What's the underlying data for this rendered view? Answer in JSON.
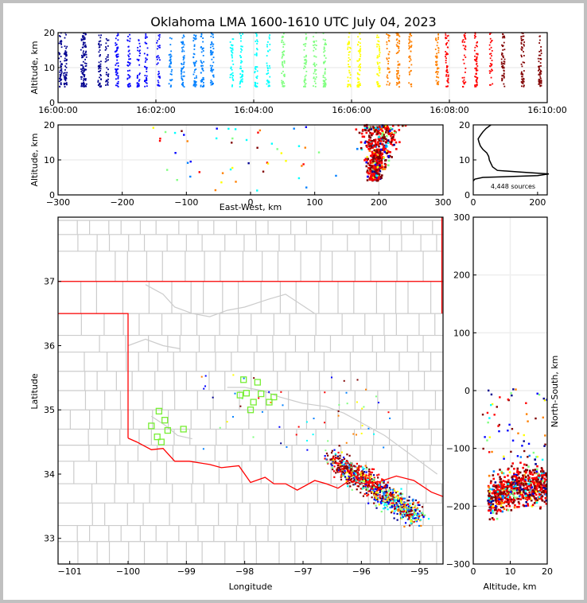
{
  "title": "Oklahoma LMA 1600-1610 UTC July 04, 2023",
  "colors": {
    "state_border": "#ff0000",
    "county_border": "#cccccc",
    "grid": "#eeeeee",
    "station_marker": "#77ee33",
    "colormap": [
      "#00008f",
      "#0000ff",
      "#0080ff",
      "#00ffff",
      "#80ff80",
      "#ffff00",
      "#ff8000",
      "#ff0000",
      "#800000"
    ]
  },
  "chart_data": [
    {
      "name": "time-altitude",
      "type": "scatter",
      "xlabel": "",
      "ylabel": "Altitude, km",
      "x_ticks": [
        "16:00:00",
        "16:02:00",
        "16:04:00",
        "16:06:00",
        "16:08:00",
        "16:10:00"
      ],
      "xlim_minutes": [
        0,
        10
      ],
      "y_ticks": [
        "0",
        "10",
        "20"
      ],
      "ylim": [
        0,
        20
      ],
      "flash_times_min": [
        0.05,
        0.15,
        0.5,
        0.55,
        0.85,
        1.0,
        1.2,
        1.45,
        1.65,
        1.8,
        2.05,
        2.3,
        2.55,
        2.8,
        2.95,
        3.15,
        3.55,
        3.75,
        4.05,
        4.3,
        4.6,
        5.05,
        5.25,
        5.45,
        5.95,
        6.15,
        6.55,
        6.75,
        6.95,
        7.2,
        7.75,
        7.95,
        8.3,
        8.55,
        8.85,
        9.1,
        9.5,
        9.85
      ],
      "altitude_range_km": [
        4.5,
        20
      ]
    },
    {
      "name": "east-west-altitude",
      "type": "scatter",
      "xlabel": "East-West, km",
      "ylabel": "Altitude, km",
      "x_ticks": [
        "−300",
        "−200",
        "−100",
        "0",
        "100",
        "200",
        "300"
      ],
      "xlim": [
        -300,
        300
      ],
      "y_ticks": [
        "0",
        "10",
        "20"
      ],
      "ylim": [
        0,
        20
      ],
      "core_center_km": [
        205,
        10
      ]
    },
    {
      "name": "altitude-histogram",
      "type": "line",
      "x_ticks": [
        "0",
        "200"
      ],
      "xlim": [
        0,
        230
      ],
      "y_ticks": [
        "0",
        "10",
        "20"
      ],
      "ylim": [
        0,
        20
      ],
      "annotation": "4,448 sources",
      "profile": [
        [
          4,
          0
        ],
        [
          4.5,
          5
        ],
        [
          5,
          30
        ],
        [
          5.5,
          200
        ],
        [
          6,
          235
        ],
        [
          6.5,
          150
        ],
        [
          7,
          75
        ],
        [
          8,
          60
        ],
        [
          9,
          55
        ],
        [
          10,
          50
        ],
        [
          11,
          48
        ],
        [
          12,
          42
        ],
        [
          13,
          30
        ],
        [
          14,
          22
        ],
        [
          15,
          18
        ],
        [
          16,
          15
        ],
        [
          17,
          22
        ],
        [
          18,
          30
        ],
        [
          19,
          40
        ],
        [
          20,
          55
        ]
      ]
    },
    {
      "name": "plan-view-map",
      "type": "scatter",
      "xlabel": "Longitude",
      "ylabel": "Latitude",
      "x_ticks": [
        "−101",
        "−100",
        "−99",
        "−98",
        "−97",
        "−96",
        "−95"
      ],
      "xlim": [
        -101.2,
        -94.6
      ],
      "y_ticks": [
        "33",
        "34",
        "35",
        "36",
        "37"
      ],
      "ylim": [
        32.6,
        38.0
      ],
      "stations": [
        [
          -98.02,
          35.47
        ],
        [
          -97.78,
          35.43
        ],
        [
          -98.08,
          35.23
        ],
        [
          -97.97,
          35.26
        ],
        [
          -97.85,
          35.12
        ],
        [
          -97.9,
          35.0
        ],
        [
          -97.72,
          35.25
        ],
        [
          -97.58,
          35.12
        ],
        [
          -97.5,
          35.2
        ],
        [
          -99.47,
          34.98
        ],
        [
          -99.37,
          34.84
        ],
        [
          -99.6,
          34.75
        ],
        [
          -99.32,
          34.68
        ],
        [
          -99.05,
          34.7
        ],
        [
          -99.5,
          34.58
        ],
        [
          -99.43,
          34.5
        ]
      ]
    },
    {
      "name": "north-south-altitude",
      "type": "scatter",
      "xlabel": "Altitude, km",
      "ylabel": "North-South, km",
      "x_ticks": [
        "0",
        "10",
        "20"
      ],
      "xlim": [
        0,
        20
      ],
      "y_ticks": [
        "300",
        "200",
        "100",
        "0",
        "−100",
        "−200",
        "−300"
      ],
      "ylim": [
        -300,
        300
      ]
    }
  ]
}
